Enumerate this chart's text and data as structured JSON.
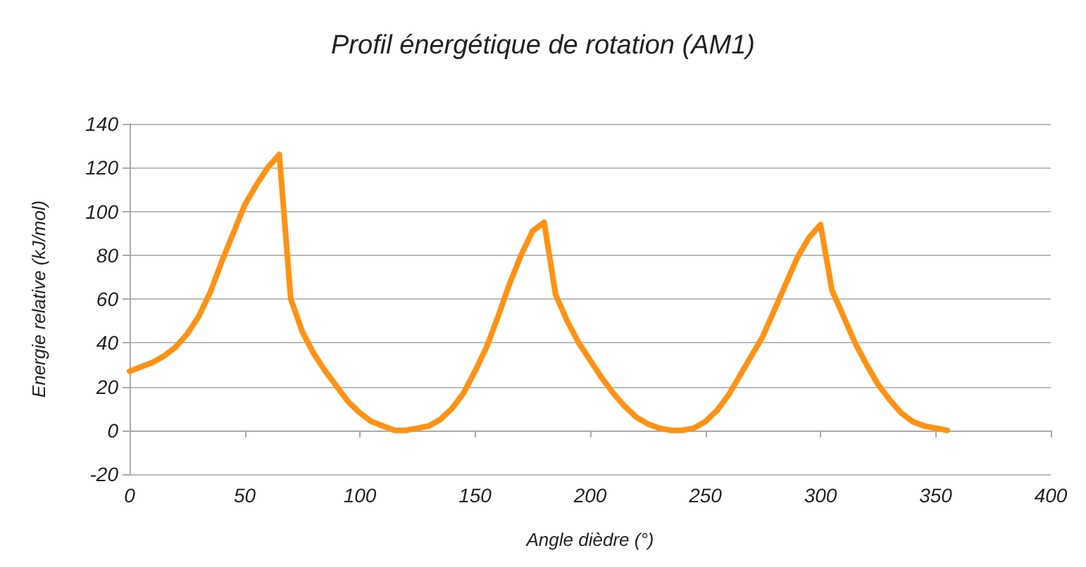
{
  "chart_data": {
    "type": "line",
    "title": "Profil énergétique de rotation (AM1)",
    "xlabel": "Angle dièdre (°)",
    "ylabel": "Energie relative (kJ/mol)",
    "x": [
      0,
      5,
      10,
      15,
      20,
      25,
      30,
      35,
      40,
      45,
      50,
      55,
      60,
      65,
      70,
      75,
      80,
      85,
      90,
      95,
      100,
      105,
      110,
      115,
      120,
      125,
      130,
      135,
      140,
      145,
      150,
      155,
      160,
      165,
      170,
      175,
      180,
      185,
      190,
      195,
      200,
      205,
      210,
      215,
      220,
      225,
      230,
      235,
      240,
      245,
      250,
      255,
      260,
      265,
      270,
      275,
      280,
      285,
      290,
      295,
      300,
      305,
      310,
      315,
      320,
      325,
      330,
      335,
      340,
      345,
      350,
      355
    ],
    "series": [
      {
        "color": "#ff9214",
        "values": [
          27,
          29,
          31,
          34,
          38,
          44,
          52,
          63,
          77,
          90,
          103,
          112,
          120,
          126,
          60,
          45,
          35,
          27,
          20,
          13,
          8,
          4,
          2,
          0,
          0,
          1,
          2,
          5,
          10,
          17,
          27,
          38,
          52,
          67,
          80,
          91,
          95,
          62,
          50,
          40,
          32,
          24,
          17,
          11,
          6,
          3,
          1,
          0,
          0,
          1,
          4,
          9,
          16,
          25,
          34,
          43,
          55,
          67,
          79,
          88,
          94,
          64,
          52,
          40,
          30,
          21,
          14,
          8,
          4,
          2,
          1,
          0
        ]
      }
    ],
    "xlim": [
      0,
      400
    ],
    "xticks": [
      0,
      50,
      100,
      150,
      200,
      250,
      300,
      350,
      400
    ],
    "ylim": [
      -20,
      140
    ],
    "yticks": [
      -20,
      0,
      20,
      40,
      60,
      80,
      100,
      120,
      140
    ],
    "grid": "y",
    "marker": "none",
    "line_style": "solid"
  }
}
